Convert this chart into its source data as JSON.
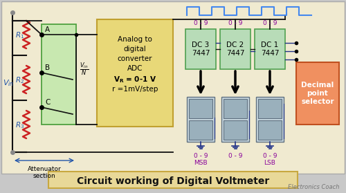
{
  "title": "Circuit working of Digital Voltmeter",
  "subtitle": "Electronics Coach",
  "main_bg": "#f0ead0",
  "fig_bg": "#c8c8c8",
  "title_bg": "#e8d898",
  "title_edge": "#c8a840",
  "adc_fill": "#e8d878",
  "adc_edge": "#c0a030",
  "att_fill": "#c8e8b0",
  "att_edge": "#50a040",
  "dc_fill": "#b8dcb8",
  "dc_edge": "#50a050",
  "seg_fill": "#c8d8e0",
  "seg_edge": "#607080",
  "seg_inner": "#9ab0bc",
  "dec_fill": "#f09060",
  "dec_edge": "#c05020",
  "resistor_color": "#cc2222",
  "wire_color": "#111111",
  "clock_color": "#4488ee",
  "purple": "#880099",
  "blue_lbl": "#2255aa",
  "arrow_color": "#111111",
  "dark_blue_wire": "#223388",
  "adc_lines": [
    "Analog to",
    "digital",
    "converter",
    "ADC"
  ],
  "adc_vr": "V",
  "dc_labels": [
    "DC 3\n7447",
    "DC 2\n7447",
    "DC 1\n7447"
  ],
  "range_top": [
    "0 - 9",
    "0 - 9",
    "0 - 9"
  ],
  "range_bot": [
    "0 - 9",
    "0 - 9",
    "0 - 9"
  ],
  "msb_label": "MSB",
  "lsb_label": "LSB",
  "att_label": "Attenuator\nsection"
}
